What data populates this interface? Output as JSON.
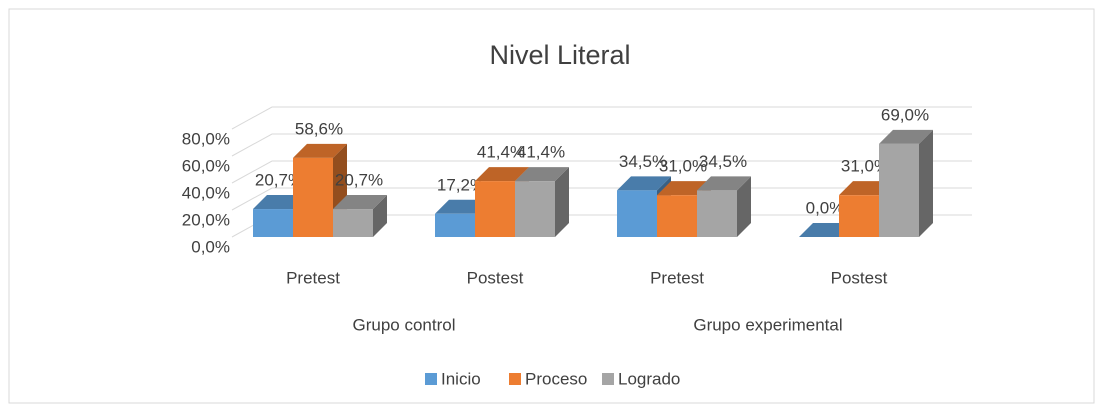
{
  "chart_data": {
    "type": "bar3d",
    "title": "Nivel Literal",
    "categories": [
      "Pretest",
      "Postest",
      "Pretest",
      "Postest"
    ],
    "groups": [
      "Grupo control",
      "Grupo experimental"
    ],
    "series": [
      {
        "name": "Inicio",
        "color": "#5b9bd5",
        "values": [
          20.7,
          17.2,
          34.5,
          0.0
        ],
        "value_labels": [
          "20,7%",
          "17,2%",
          "34,5%",
          "0,0%"
        ]
      },
      {
        "name": "Proceso",
        "color": "#ed7d31",
        "values": [
          58.6,
          41.4,
          31.0,
          31.0
        ],
        "value_labels": [
          "58,6%",
          "41,4%",
          "31,0%",
          "31,0%"
        ]
      },
      {
        "name": "Logrado",
        "color": "#a5a5a5",
        "values": [
          20.7,
          41.4,
          34.5,
          69.0
        ],
        "value_labels": [
          "20,7%",
          "41,4%",
          "34,5%",
          "69,0%"
        ]
      }
    ],
    "ylim": [
      0,
      80
    ],
    "yticks": [
      {
        "value": 0,
        "label": "0,0%"
      },
      {
        "value": 20,
        "label": "20,0%"
      },
      {
        "value": 40,
        "label": "40,0%"
      },
      {
        "value": 60,
        "label": "60,0%"
      },
      {
        "value": 80,
        "label": "80,0%"
      }
    ],
    "grid": true,
    "legend": "bottom"
  }
}
